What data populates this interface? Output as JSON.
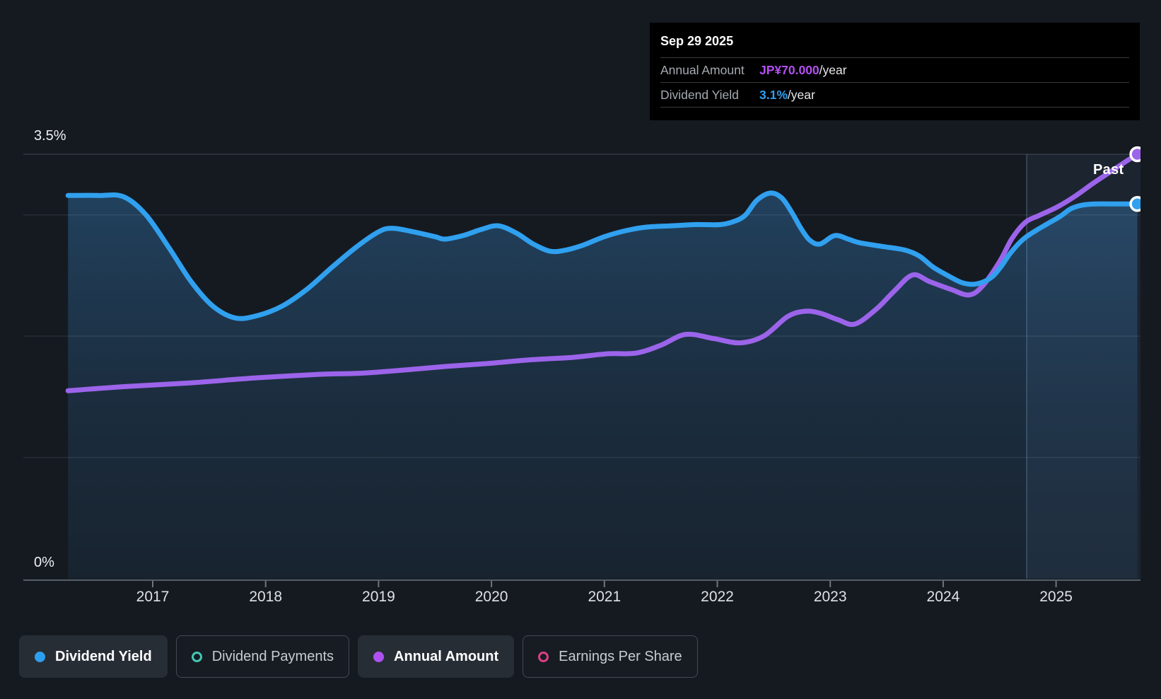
{
  "tooltip": {
    "date": "Sep 29 2025",
    "rows": [
      {
        "label": "Annual Amount",
        "value": "JP¥70.000",
        "suffix": "/year",
        "color": "#b44ff2"
      },
      {
        "label": "Dividend Yield",
        "value": "3.1%",
        "suffix": "/year",
        "color": "#2d9ff0"
      }
    ]
  },
  "past_label": "Past",
  "y_axis": {
    "label_top": "3.5%",
    "label_bottom": "0%"
  },
  "legend": {
    "items": [
      {
        "label": "Dividend Yield",
        "color": "#2d9ff0",
        "filled": true,
        "active": true
      },
      {
        "label": "Dividend Payments",
        "color": "#43c8b3",
        "filled": false,
        "active": false
      },
      {
        "label": "Annual Amount",
        "color": "#ad52f0",
        "filled": true,
        "active": true
      },
      {
        "label": "Earnings Per Share",
        "color": "#dd3f83",
        "filled": false,
        "active": false
      }
    ]
  },
  "chart_data": {
    "type": "line",
    "x_axis": {
      "ticks": [
        2017,
        2018,
        2019,
        2020,
        2021,
        2022,
        2023,
        2024,
        2025
      ],
      "range": [
        2016.25,
        2025.78
      ]
    },
    "y_axis": {
      "ylim": [
        0,
        3.5
      ],
      "unit": "%",
      "gridlines_pct": [
        3.5,
        3,
        2,
        1
      ],
      "label_top": "3.5%",
      "label_bottom": "0%"
    },
    "past_divider_year": 2024.74,
    "grid": true,
    "legend_position": "bottom",
    "series": [
      {
        "name": "Dividend Yield",
        "unit": "%",
        "color": "#30a0ef",
        "fill": true,
        "endpoint_marker": true,
        "points": [
          [
            2016.25,
            3.16
          ],
          [
            2016.52,
            3.16
          ],
          [
            2016.74,
            3.15
          ],
          [
            2016.94,
            3.0
          ],
          [
            2017.15,
            2.72
          ],
          [
            2017.34,
            2.45
          ],
          [
            2017.53,
            2.25
          ],
          [
            2017.73,
            2.15
          ],
          [
            2017.93,
            2.17
          ],
          [
            2018.15,
            2.25
          ],
          [
            2018.37,
            2.39
          ],
          [
            2018.59,
            2.57
          ],
          [
            2018.81,
            2.74
          ],
          [
            2019.0,
            2.86
          ],
          [
            2019.12,
            2.89
          ],
          [
            2019.31,
            2.86
          ],
          [
            2019.5,
            2.82
          ],
          [
            2019.59,
            2.8
          ],
          [
            2019.75,
            2.83
          ],
          [
            2019.91,
            2.88
          ],
          [
            2020.06,
            2.91
          ],
          [
            2020.22,
            2.85
          ],
          [
            2020.37,
            2.76
          ],
          [
            2020.52,
            2.7
          ],
          [
            2020.66,
            2.71
          ],
          [
            2020.81,
            2.75
          ],
          [
            2021.0,
            2.82
          ],
          [
            2021.19,
            2.87
          ],
          [
            2021.38,
            2.9
          ],
          [
            2021.6,
            2.91
          ],
          [
            2021.81,
            2.92
          ],
          [
            2022.03,
            2.92
          ],
          [
            2022.16,
            2.95
          ],
          [
            2022.25,
            3.0
          ],
          [
            2022.35,
            3.12
          ],
          [
            2022.47,
            3.18
          ],
          [
            2022.57,
            3.14
          ],
          [
            2022.66,
            3.02
          ],
          [
            2022.74,
            2.89
          ],
          [
            2022.82,
            2.79
          ],
          [
            2022.91,
            2.76
          ],
          [
            2023.04,
            2.83
          ],
          [
            2023.16,
            2.8
          ],
          [
            2023.26,
            2.77
          ],
          [
            2023.46,
            2.74
          ],
          [
            2023.66,
            2.71
          ],
          [
            2023.79,
            2.66
          ],
          [
            2023.91,
            2.57
          ],
          [
            2024.04,
            2.5
          ],
          [
            2024.17,
            2.44
          ],
          [
            2024.29,
            2.43
          ],
          [
            2024.42,
            2.48
          ],
          [
            2024.51,
            2.57
          ],
          [
            2024.6,
            2.69
          ],
          [
            2024.71,
            2.8
          ],
          [
            2024.82,
            2.87
          ],
          [
            2024.93,
            2.93
          ],
          [
            2025.04,
            2.99
          ],
          [
            2025.13,
            3.05
          ],
          [
            2025.23,
            3.08
          ],
          [
            2025.35,
            3.09
          ],
          [
            2025.54,
            3.09
          ],
          [
            2025.72,
            3.09
          ]
        ]
      },
      {
        "name": "Annual Amount",
        "unit": "JP¥/year",
        "color": "#9c64ea",
        "fill": false,
        "endpoint_marker": true,
        "scale_max": 70,
        "points": [
          [
            2016.25,
            31.0
          ],
          [
            2016.77,
            31.7
          ],
          [
            2017.34,
            32.3
          ],
          [
            2017.9,
            33.1
          ],
          [
            2018.47,
            33.7
          ],
          [
            2018.86,
            33.9
          ],
          [
            2019.22,
            34.4
          ],
          [
            2019.59,
            35.0
          ],
          [
            2019.97,
            35.5
          ],
          [
            2020.34,
            36.1
          ],
          [
            2020.72,
            36.5
          ],
          [
            2021.03,
            37.1
          ],
          [
            2021.28,
            37.2
          ],
          [
            2021.5,
            38.5
          ],
          [
            2021.72,
            40.3
          ],
          [
            2021.97,
            39.6
          ],
          [
            2022.2,
            38.9
          ],
          [
            2022.41,
            40.0
          ],
          [
            2022.62,
            43.2
          ],
          [
            2022.77,
            44.1
          ],
          [
            2022.91,
            43.8
          ],
          [
            2023.07,
            42.7
          ],
          [
            2023.22,
            42.0
          ],
          [
            2023.41,
            44.5
          ],
          [
            2023.57,
            47.5
          ],
          [
            2023.73,
            50.1
          ],
          [
            2023.88,
            49.0
          ],
          [
            2024.07,
            47.7
          ],
          [
            2024.23,
            46.8
          ],
          [
            2024.35,
            48.3
          ],
          [
            2024.5,
            52.3
          ],
          [
            2024.61,
            56.1
          ],
          [
            2024.73,
            58.8
          ],
          [
            2024.85,
            59.9
          ],
          [
            2025.01,
            61.3
          ],
          [
            2025.17,
            63.1
          ],
          [
            2025.32,
            65.1
          ],
          [
            2025.48,
            67.1
          ],
          [
            2025.61,
            68.7
          ],
          [
            2025.72,
            70.0
          ]
        ]
      }
    ]
  },
  "colors": {
    "background": "#151a21",
    "axis_line": "#565e67",
    "tick": "#70767d",
    "tick_label": "#dfe1e3",
    "gridline": "rgba(220,235,250,0.09)",
    "gridline_top": "rgba(220,235,250,0.14)",
    "past_region": "rgba(110,165,225,0.08)",
    "past_divider": "rgba(150,185,225,0.30)",
    "fill_top": "rgba(58,140,210,0.34)",
    "fill_mid": "rgba(58,140,210,0.16)",
    "fill_bottom": "rgba(58,140,210,0.08)"
  }
}
